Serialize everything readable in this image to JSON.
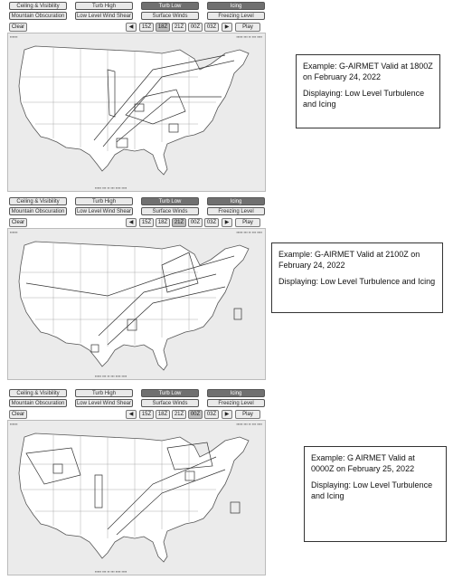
{
  "tabs_row1": [
    "Ceiling & Visibility",
    "Turb High",
    "Turb Low",
    "Icing"
  ],
  "tabs_row2": [
    "Mountain Obscuration",
    "Low Level Wind Shear",
    "Surface Winds",
    "Freezing Level"
  ],
  "clear_label": "Clear",
  "prev_icon": "left-triangle-icon",
  "next_icon": "right-triangle-icon",
  "play_label": "Play",
  "times": [
    "15Z",
    "18Z",
    "21Z",
    "00Z",
    "03Z"
  ],
  "panels": [
    {
      "selected_time_index": 1,
      "callout": {
        "line1": "Example:  G-AIRMET Valid at 1800Z on February 24, 2022",
        "line2": "Displaying:  Low Level Turbulence and Icing"
      }
    },
    {
      "selected_time_index": 2,
      "callout": {
        "line1": "Example:  G-AIRMET Valid at 2100Z on February 24, 2022",
        "line2": "Displaying:  Low Level Turbulence and Icing"
      }
    },
    {
      "selected_time_index": 3,
      "callout": {
        "line1": "Example:  G AIRMET Valid at 0000Z on February 25, 2022",
        "line2": "Displaying:  Low Level Turbulence and Icing"
      }
    }
  ],
  "colors": {
    "active_tab": "#707070",
    "map_bg": "#ebebeb",
    "land": "#ffffff"
  }
}
